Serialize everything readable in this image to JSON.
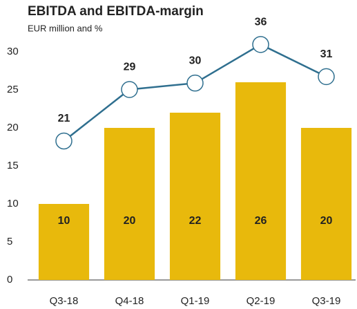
{
  "chart_data": {
    "type": "bar+line",
    "title": "EBITDA and EBITDA-margin",
    "subtitle": "EUR million and %",
    "categories": [
      "Q3-18",
      "Q4-18",
      "Q1-19",
      "Q2-19",
      "Q3-19"
    ],
    "series": [
      {
        "name": "EBITDA",
        "type": "bar",
        "color": "#e8b90c",
        "values": [
          10,
          20,
          22,
          26,
          20
        ]
      },
      {
        "name": "EBITDA-margin",
        "type": "line",
        "color": "#2f6f8f",
        "axis": "y2",
        "values": [
          21,
          29,
          30,
          36,
          31
        ]
      }
    ],
    "ylim": [
      0,
      33
    ],
    "yticks": [
      0,
      5,
      10,
      15,
      20,
      25,
      30
    ],
    "y2lim": [
      -0.6,
      38.4
    ],
    "grid": false
  }
}
